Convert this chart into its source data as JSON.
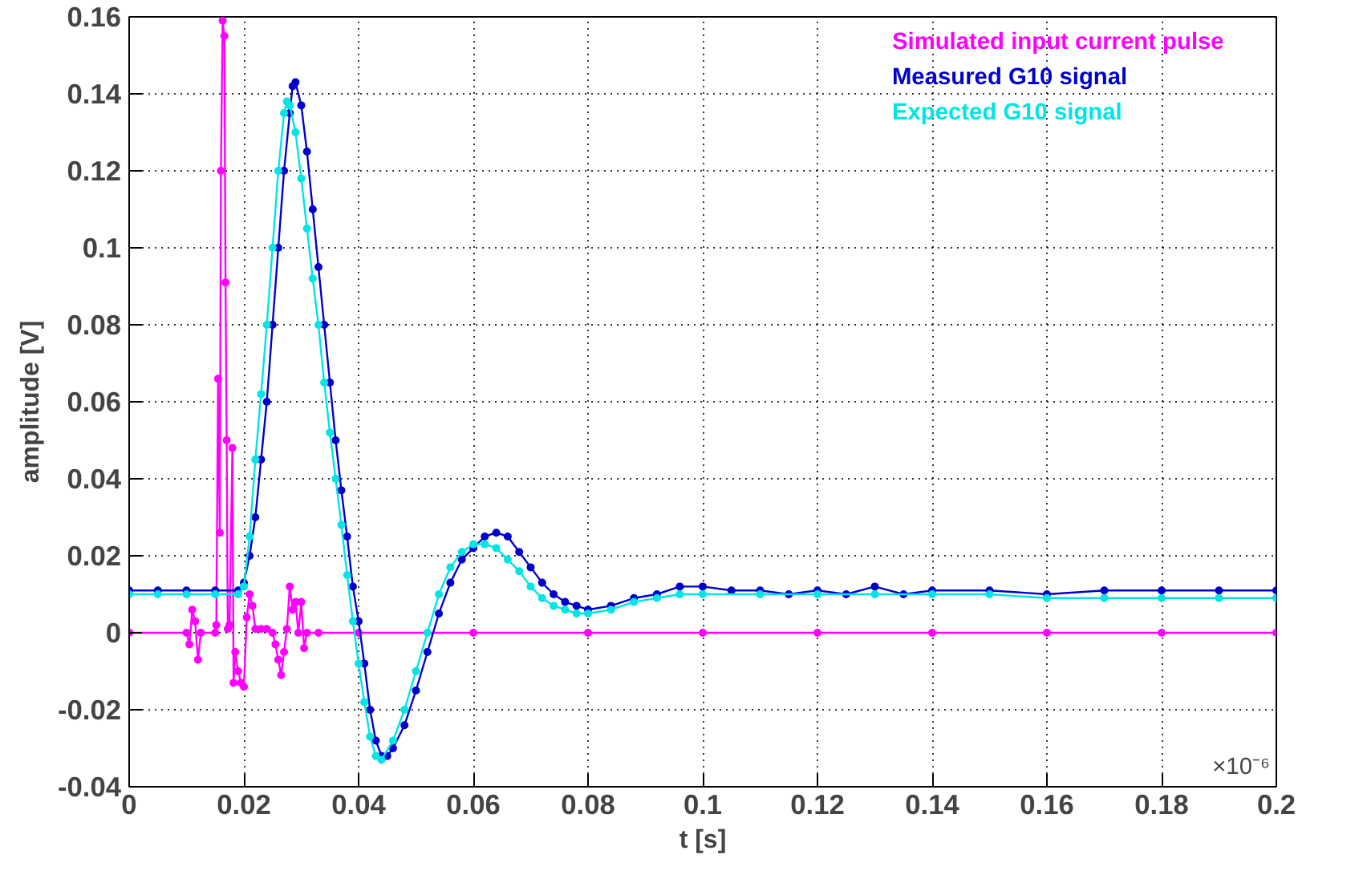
{
  "chart_data": {
    "type": "line",
    "xlabel": "t [s]",
    "ylabel": "amplitude [V]",
    "annotations": [
      "×10⁻⁶"
    ],
    "xlim": [
      0,
      0.2
    ],
    "xticks": [
      0,
      0.02,
      0.04,
      0.06,
      0.08,
      0.1,
      0.12,
      0.14,
      0.16,
      0.18,
      0.2
    ],
    "ylim": [
      -0.04,
      0.16
    ],
    "yticks": [
      -0.04,
      -0.02,
      0,
      0.02,
      0.04,
      0.06,
      0.08,
      0.1,
      0.12,
      0.14,
      0.16
    ],
    "grid": true,
    "legend": "top right",
    "marker": "circle",
    "line_style": "solid",
    "series": [
      {
        "name": "Simulated input current pulse",
        "color": "#ff00ff",
        "x": [
          0,
          0.01,
          0.0105,
          0.011,
          0.0115,
          0.012,
          0.0125,
          0.015,
          0.0152,
          0.0155,
          0.0158,
          0.016,
          0.0163,
          0.0166,
          0.0168,
          0.017,
          0.0172,
          0.0175,
          0.018,
          0.0182,
          0.0185,
          0.019,
          0.0195,
          0.02,
          0.0205,
          0.021,
          0.0215,
          0.022,
          0.023,
          0.024,
          0.025,
          0.0255,
          0.026,
          0.0265,
          0.027,
          0.0275,
          0.028,
          0.0285,
          0.029,
          0.0295,
          0.03,
          0.0305,
          0.031,
          0.033,
          0.04,
          0.06,
          0.08,
          0.1,
          0.12,
          0.14,
          0.16,
          0.18,
          0.2
        ],
        "values": [
          0,
          0,
          -0.003,
          0.006,
          0.003,
          -0.007,
          0,
          0,
          0.002,
          0.066,
          0.026,
          0.12,
          0.159,
          0.155,
          0.091,
          0.05,
          0.001,
          0.002,
          0.048,
          -0.013,
          -0.005,
          -0.01,
          -0.013,
          -0.014,
          0.004,
          0.01,
          0.007,
          0.001,
          0.001,
          0.001,
          0,
          -0.003,
          -0.007,
          -0.011,
          -0.005,
          0.001,
          0.012,
          0.006,
          0.008,
          0,
          0.008,
          -0.004,
          0,
          0,
          0,
          0,
          0,
          0,
          0,
          0,
          0,
          0,
          0
        ]
      },
      {
        "name": "Measured G10 signal",
        "color": "#0000cc",
        "x": [
          0,
          0.005,
          0.01,
          0.015,
          0.019,
          0.02,
          0.021,
          0.022,
          0.023,
          0.024,
          0.025,
          0.026,
          0.027,
          0.028,
          0.0285,
          0.029,
          0.03,
          0.031,
          0.032,
          0.033,
          0.034,
          0.035,
          0.036,
          0.037,
          0.038,
          0.039,
          0.04,
          0.041,
          0.042,
          0.043,
          0.044,
          0.045,
          0.046,
          0.048,
          0.05,
          0.052,
          0.054,
          0.056,
          0.058,
          0.06,
          0.062,
          0.064,
          0.066,
          0.068,
          0.07,
          0.072,
          0.074,
          0.076,
          0.078,
          0.08,
          0.084,
          0.088,
          0.092,
          0.096,
          0.1,
          0.105,
          0.11,
          0.115,
          0.12,
          0.125,
          0.13,
          0.135,
          0.14,
          0.15,
          0.16,
          0.17,
          0.18,
          0.19,
          0.2
        ],
        "values": [
          0.011,
          0.011,
          0.011,
          0.011,
          0.011,
          0.013,
          0.02,
          0.03,
          0.045,
          0.06,
          0.08,
          0.1,
          0.12,
          0.135,
          0.142,
          0.143,
          0.137,
          0.125,
          0.11,
          0.095,
          0.08,
          0.065,
          0.05,
          0.037,
          0.025,
          0.012,
          0.003,
          -0.008,
          -0.02,
          -0.028,
          -0.032,
          -0.032,
          -0.03,
          -0.024,
          -0.015,
          -0.005,
          0.005,
          0.013,
          0.019,
          0.022,
          0.025,
          0.026,
          0.025,
          0.021,
          0.017,
          0.013,
          0.01,
          0.008,
          0.007,
          0.006,
          0.007,
          0.009,
          0.01,
          0.012,
          0.012,
          0.011,
          0.011,
          0.01,
          0.011,
          0.01,
          0.012,
          0.01,
          0.011,
          0.011,
          0.01,
          0.011,
          0.011,
          0.011,
          0.011
        ]
      },
      {
        "name": "Expected G10 signal",
        "color": "#00e5e5",
        "x": [
          0,
          0.005,
          0.01,
          0.015,
          0.019,
          0.02,
          0.021,
          0.022,
          0.023,
          0.024,
          0.025,
          0.026,
          0.027,
          0.0275,
          0.028,
          0.029,
          0.03,
          0.031,
          0.032,
          0.033,
          0.034,
          0.035,
          0.036,
          0.037,
          0.038,
          0.039,
          0.04,
          0.041,
          0.042,
          0.043,
          0.044,
          0.046,
          0.048,
          0.05,
          0.052,
          0.054,
          0.056,
          0.058,
          0.06,
          0.062,
          0.064,
          0.066,
          0.068,
          0.07,
          0.072,
          0.074,
          0.076,
          0.078,
          0.08,
          0.084,
          0.088,
          0.092,
          0.096,
          0.1,
          0.11,
          0.12,
          0.13,
          0.14,
          0.15,
          0.16,
          0.17,
          0.18,
          0.19,
          0.2
        ],
        "values": [
          0.01,
          0.01,
          0.01,
          0.01,
          0.01,
          0.012,
          0.025,
          0.045,
          0.062,
          0.08,
          0.1,
          0.12,
          0.135,
          0.138,
          0.137,
          0.13,
          0.118,
          0.105,
          0.092,
          0.08,
          0.065,
          0.052,
          0.04,
          0.028,
          0.015,
          0.003,
          -0.008,
          -0.018,
          -0.027,
          -0.032,
          -0.033,
          -0.028,
          -0.02,
          -0.01,
          0,
          0.01,
          0.017,
          0.021,
          0.023,
          0.023,
          0.022,
          0.019,
          0.016,
          0.012,
          0.009,
          0.007,
          0.006,
          0.005,
          0.005,
          0.006,
          0.008,
          0.009,
          0.01,
          0.01,
          0.01,
          0.01,
          0.01,
          0.01,
          0.01,
          0.009,
          0.009,
          0.009,
          0.009,
          0.009
        ]
      }
    ]
  }
}
